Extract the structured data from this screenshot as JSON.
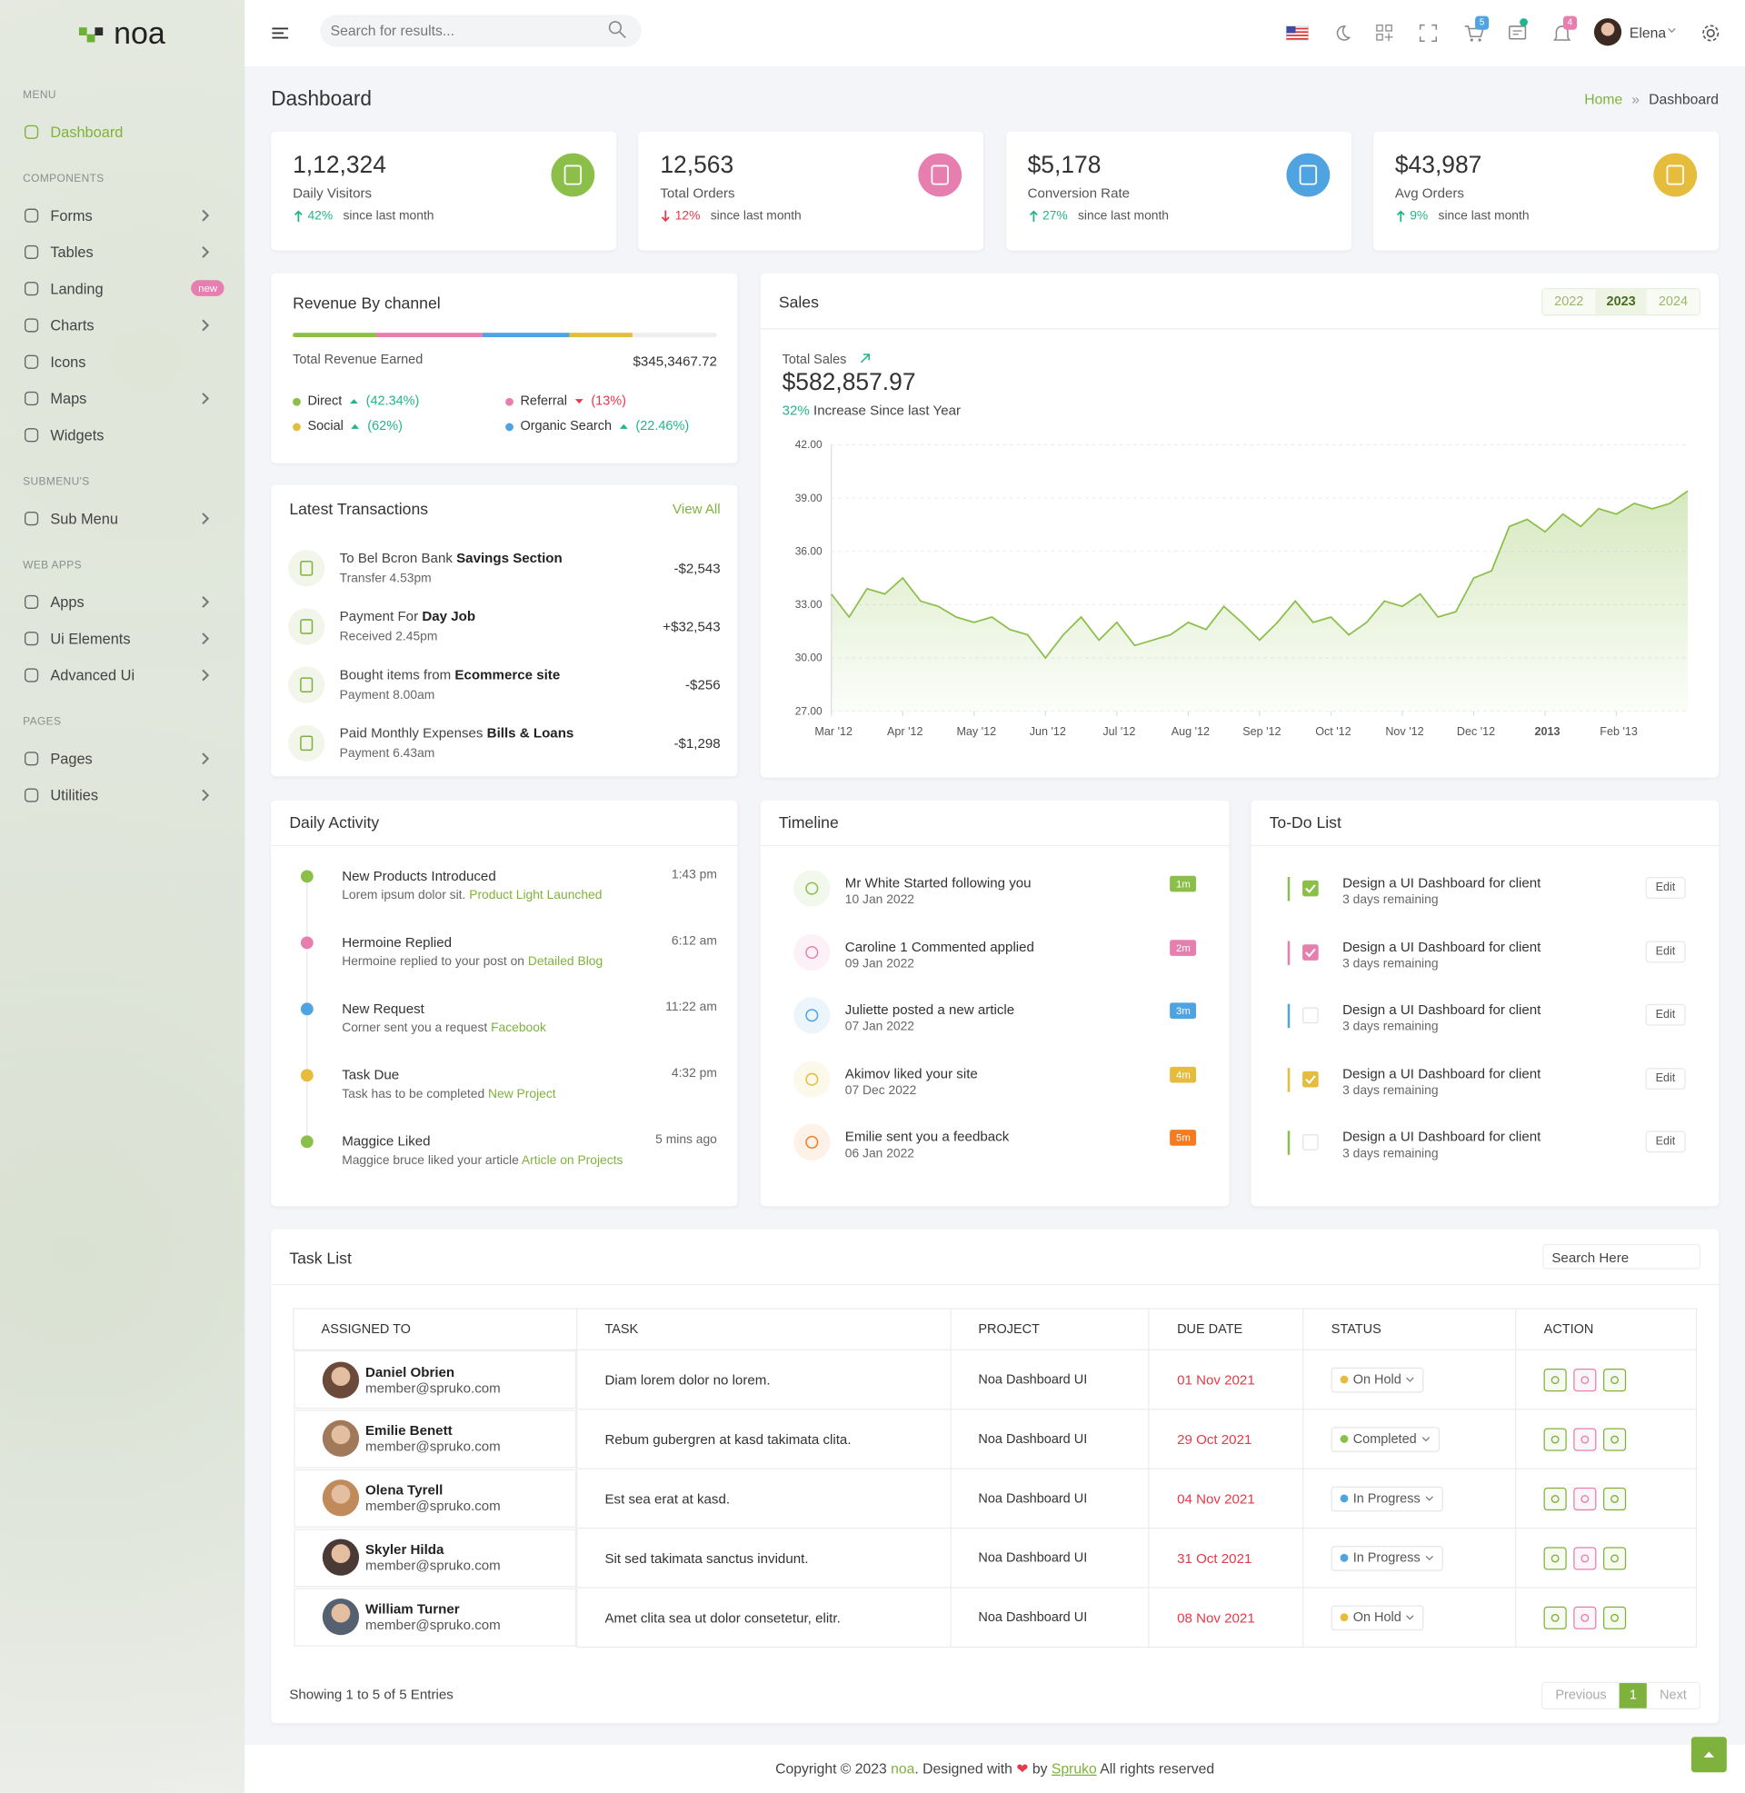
{
  "sidebar": {
    "logo": "noa",
    "sections": [
      {
        "title": "MENU",
        "items": [
          {
            "label": "Dashboard",
            "active": true
          }
        ]
      },
      {
        "title": "COMPONENTS",
        "items": [
          {
            "label": "Forms",
            "submenu": true
          },
          {
            "label": "Tables",
            "submenu": true
          },
          {
            "label": "Landing",
            "badge": "new"
          },
          {
            "label": "Charts",
            "submenu": true
          },
          {
            "label": "Icons"
          },
          {
            "label": "Maps",
            "submenu": true
          },
          {
            "label": "Widgets"
          }
        ]
      },
      {
        "title": "SUBMENU'S",
        "items": [
          {
            "label": "Sub Menu",
            "submenu": true
          }
        ]
      },
      {
        "title": "WEB APPS",
        "items": [
          {
            "label": "Apps",
            "submenu": true
          },
          {
            "label": "Ui Elements",
            "submenu": true
          },
          {
            "label": "Advanced Ui",
            "submenu": true
          }
        ]
      },
      {
        "title": "PAGES",
        "items": [
          {
            "label": "Pages",
            "submenu": true
          },
          {
            "label": "Utilities",
            "submenu": true
          }
        ]
      }
    ]
  },
  "header": {
    "search_placeholder": "Search for results...",
    "cart_count": 5,
    "notification_count": 4,
    "user": "Elena"
  },
  "page": {
    "title": "Dashboard",
    "breadcrumb": [
      "Home",
      "Dashboard"
    ]
  },
  "stats": [
    {
      "value": "1,12,324",
      "label": "Daily Visitors",
      "change": "42%",
      "trend": "up",
      "note": "since last month",
      "color": "#8cbf4a"
    },
    {
      "value": "12,563",
      "label": "Total Orders",
      "change": "12%",
      "trend": "down",
      "note": "since last month",
      "color": "#e67fb0"
    },
    {
      "value": "$5,178",
      "label": "Conversion Rate",
      "change": "27%",
      "trend": "up",
      "note": "since last month",
      "color": "#4fa3e0"
    },
    {
      "value": "$43,987",
      "label": "Avg Orders",
      "change": "9%",
      "trend": "up",
      "note": "since last month",
      "color": "#e6bc3c"
    }
  ],
  "revenue": {
    "title": "Revenue By channel",
    "total_label": "Total Revenue Earned",
    "total": "$345,3467.72",
    "channels": [
      {
        "name": "Direct",
        "change": "(42.34%)",
        "trend": "up",
        "color": "#8cbf4a"
      },
      {
        "name": "Referral",
        "change": "(13%)",
        "trend": "down",
        "color": "#e67fb0"
      },
      {
        "name": "Social",
        "change": "(62%)",
        "trend": "up",
        "color": "#e6bc3c"
      },
      {
        "name": "Organic Search",
        "change": "(22.46%)",
        "trend": "up",
        "color": "#4fa3e0"
      }
    ]
  },
  "transactions": {
    "title": "Latest Transactions",
    "link": "View All",
    "items": [
      {
        "text": "To Bel Bcron Bank",
        "emphasis": "Savings Section",
        "detail": "Transfer 4.53pm",
        "amount": "-$2,543"
      },
      {
        "text": "Payment For",
        "emphasis": "Day Job",
        "detail": "Received 2.45pm",
        "amount": "+$32,543"
      },
      {
        "text": "Bought items from",
        "emphasis": "Ecommerce site",
        "detail": "Payment 8.00am",
        "amount": "-$256"
      },
      {
        "text": "Paid Monthly Expenses",
        "emphasis": "Bills & Loans",
        "detail": "Payment 6.43am",
        "amount": "-$1,298"
      }
    ]
  },
  "sales": {
    "title": "Sales",
    "years": [
      {
        "label": "2022"
      },
      {
        "label": "2023",
        "active": true
      },
      {
        "label": "2024"
      }
    ],
    "total_label": "Total Sales",
    "total": "$582,857.97",
    "increase": "32%",
    "increase_text": "Increase Since last Year"
  },
  "chart_data": {
    "type": "area",
    "color": "#8cbf4a",
    "values": [
      33.6,
      32.3,
      33.9,
      33.6,
      34.5,
      33.2,
      32.9,
      32.3,
      32.0,
      32.3,
      31.6,
      31.3,
      30.0,
      31.3,
      32.3,
      31.0,
      32.0,
      30.7,
      31.0,
      31.3,
      32.0,
      31.6,
      32.9,
      32.0,
      31.0,
      32.0,
      33.2,
      32.0,
      32.3,
      31.3,
      32.0,
      33.2,
      32.9,
      33.6,
      32.3,
      32.6,
      34.5,
      34.9,
      37.4,
      37.8,
      37.1,
      38.1,
      37.4,
      38.4,
      38.1,
      38.7,
      38.4,
      38.7,
      39.4
    ],
    "xlim": [
      0,
      48
    ],
    "xticks": [
      {
        "value": 0,
        "label": "Mar '12"
      },
      {
        "value": 4,
        "label": "Apr '12"
      },
      {
        "value": 8,
        "label": "May '12"
      },
      {
        "value": 12,
        "label": "Jun '12"
      },
      {
        "value": 16,
        "label": "Jul '12"
      },
      {
        "value": 20,
        "label": "Aug '12"
      },
      {
        "value": 24,
        "label": "Sep '12"
      },
      {
        "value": 28,
        "label": "Oct '12"
      },
      {
        "value": 32,
        "label": "Nov '12"
      },
      {
        "value": 36,
        "label": "Dec '12"
      },
      {
        "value": 40,
        "label": "2013"
      },
      {
        "value": 44,
        "label": "Feb '13"
      }
    ],
    "ylim": [
      27,
      42
    ],
    "yticks": [
      {
        "value": 27,
        "label": "27.00"
      },
      {
        "value": 30,
        "label": "30.00"
      },
      {
        "value": 33,
        "label": "33.00"
      },
      {
        "value": 36,
        "label": "36.00"
      },
      {
        "value": 39,
        "label": "39.00"
      },
      {
        "value": 42,
        "label": "42.00"
      }
    ],
    "grid": true
  },
  "activity": {
    "title": "Daily Activity",
    "items": [
      {
        "title": "New Products Introduced",
        "time": "1:43 pm",
        "text": "Lorem ipsum dolor sit.",
        "link": "Product Light Launched",
        "color": "#8cbf4a"
      },
      {
        "title": "Hermoine Replied",
        "time": "6:12 am",
        "text": "Hermoine replied to your post on",
        "link": "Detailed Blog",
        "color": "#e67fb0"
      },
      {
        "title": "New Request",
        "time": "11:22 am",
        "text": "Corner sent you a request",
        "link": "Facebook",
        "color": "#4fa3e0"
      },
      {
        "title": "Task Due",
        "time": "4:32 pm",
        "text": "Task has to be completed",
        "link": "New Project",
        "color": "#e6bc3c"
      },
      {
        "title": "Maggice Liked",
        "time": "5 mins ago",
        "text": "Maggice bruce liked your article",
        "link": "Article on Projects",
        "color": "#8cbf4a"
      }
    ]
  },
  "timeline": {
    "title": "Timeline",
    "items": [
      {
        "text": "Mr White Started following you",
        "date": "10 Jan 2022",
        "badge": "1m",
        "color": "#8cbf4a"
      },
      {
        "text": "Caroline 1 Commented applied",
        "date": "09 Jan 2022",
        "badge": "2m",
        "color": "#e67fb0"
      },
      {
        "text": "Juliette posted a new article",
        "date": "07 Jan 2022",
        "badge": "3m",
        "color": "#4fa3e0"
      },
      {
        "text": "Akimov liked your site",
        "date": "07 Dec 2022",
        "badge": "4m",
        "color": "#e6bc3c"
      },
      {
        "text": "Emilie sent you a feedback",
        "date": "06 Jan 2022",
        "badge": "5m",
        "color": "#f47b20"
      }
    ]
  },
  "todo": {
    "title": "To-Do List",
    "items": [
      {
        "text": "Design a UI Dashboard for client",
        "sub": "3 days remaining",
        "checked": true,
        "color": "#8cbf4a",
        "button": "Edit"
      },
      {
        "text": "Design a UI Dashboard for client",
        "sub": "3 days remaining",
        "checked": true,
        "color": "#e67fb0",
        "button": "Edit"
      },
      {
        "text": "Design a UI Dashboard for client",
        "sub": "3 days remaining",
        "checked": false,
        "color": "#4fa3e0",
        "button": "Edit"
      },
      {
        "text": "Design a UI Dashboard for client",
        "sub": "3 days remaining",
        "checked": true,
        "color": "#e6bc3c",
        "button": "Edit"
      },
      {
        "text": "Design a UI Dashboard for client",
        "sub": "3 days remaining",
        "checked": false,
        "color": "#8cbf4a",
        "button": "Edit"
      }
    ]
  },
  "tasks": {
    "title": "Task List",
    "search_placeholder": "Search Here",
    "columns": [
      "ASSIGNED TO",
      "TASK",
      "PROJECT",
      "DUE DATE",
      "STATUS",
      "ACTION"
    ],
    "rows": [
      {
        "name": "Daniel Obrien",
        "email": "member@spruko.com",
        "task": "Diam lorem dolor no lorem.",
        "project": "Noa Dashboard UI",
        "due": "01 Nov 2021",
        "status": "On Hold",
        "status_color": "#e6bc3c"
      },
      {
        "name": "Emilie Benett",
        "email": "member@spruko.com",
        "task": "Rebum gubergren at kasd takimata clita.",
        "project": "Noa Dashboard UI",
        "due": "29 Oct 2021",
        "status": "Completed",
        "status_color": "#8cbf4a"
      },
      {
        "name": "Olena Tyrell",
        "email": "member@spruko.com",
        "task": "Est sea erat at kasd.",
        "project": "Noa Dashboard UI",
        "due": "04 Nov 2021",
        "status": "In Progress",
        "status_color": "#4fa3e0"
      },
      {
        "name": "Skyler Hilda",
        "email": "member@spruko.com",
        "task": "Sit sed takimata sanctus invidunt.",
        "project": "Noa Dashboard UI",
        "due": "31 Oct 2021",
        "status": "In Progress",
        "status_color": "#4fa3e0"
      },
      {
        "name": "William Turner",
        "email": "member@spruko.com",
        "task": "Amet clita sea ut dolor consetetur, elitr.",
        "project": "Noa Dashboard UI",
        "due": "08 Nov 2021",
        "status": "On Hold",
        "status_color": "#e6bc3c"
      }
    ],
    "summary": "Showing 1 to 5 of 5 Entries",
    "pagination": [
      "Previous",
      "1",
      "Next"
    ]
  },
  "footer": {
    "copyright": "Copyright © 2023",
    "brand": "noa",
    "designed": ". Designed with",
    "by": "by",
    "company": "Spruko",
    "rights": "All rights reserved"
  }
}
